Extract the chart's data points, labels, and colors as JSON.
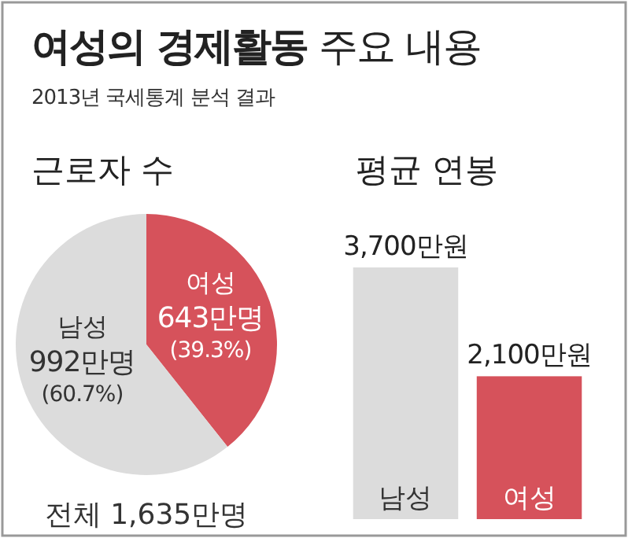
{
  "chart_data": [
    {
      "type": "other",
      "title": "여성의 경제활동 주요 내용",
      "subtitle": "2013년 국세통계 분석 결과"
    },
    {
      "type": "pie",
      "title": "근로자 수",
      "categories": [
        "여성",
        "남성"
      ],
      "values": [
        643,
        992
      ],
      "colors": [
        "#d6525b",
        "#dcdcdc"
      ],
      "value_labels": [
        "643만명 (39.3%)",
        "992만명 (60.7%)"
      ],
      "annotations": [
        "전체 1,635만명"
      ]
    },
    {
      "type": "bar",
      "title": "평균 연봉",
      "categories": [
        "남성",
        "여성"
      ],
      "values": [
        3700,
        2100
      ],
      "colors": [
        "#dcdcdc",
        "#d6525b"
      ],
      "value_labels": [
        "3,700만원",
        "2,100만원"
      ]
    }
  ]
}
